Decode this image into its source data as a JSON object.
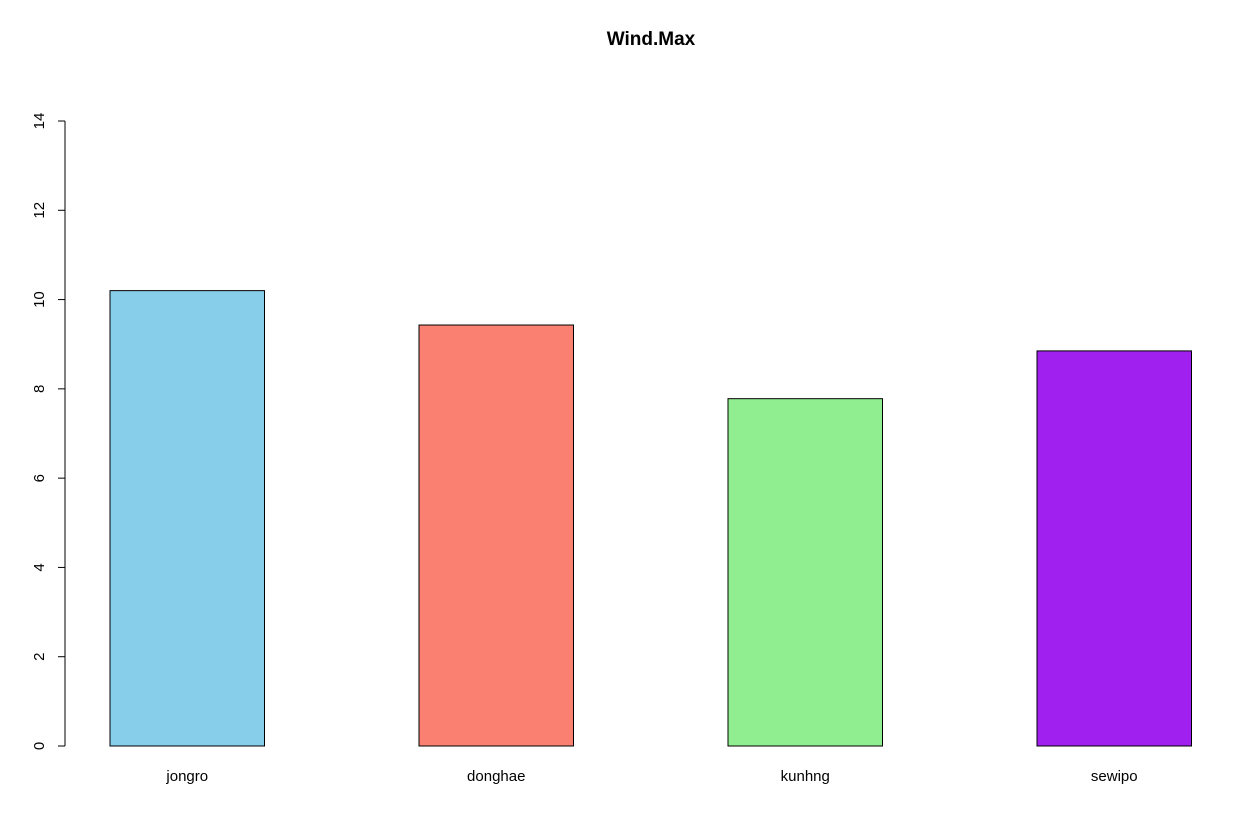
{
  "chart_data": {
    "type": "bar",
    "title": "Wind.Max",
    "xlabel": "",
    "ylabel": "",
    "categories": [
      "jongro",
      "donghae",
      "kunhng",
      "sewipo"
    ],
    "values": [
      10.2,
      9.43,
      7.78,
      8.85
    ],
    "colors": [
      "#87CEEB",
      "#FA8072",
      "#90EE90",
      "#A020F0"
    ],
    "ylim": [
      0,
      14
    ],
    "y_ticks": [
      0,
      2,
      4,
      6,
      8,
      10,
      12,
      14
    ],
    "y_tick_labels": [
      "0",
      "2",
      "4",
      "6",
      "8",
      "10",
      "12",
      "14"
    ],
    "grid": false,
    "legend": "none"
  }
}
